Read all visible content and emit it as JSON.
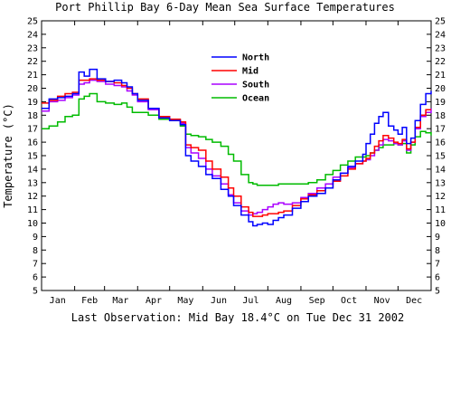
{
  "chart_data": {
    "type": "line",
    "title": "Port Phillip Bay 6-Day Mean Sea Surface Temperatures",
    "ylabel": "Temperature (°C)",
    "footer": "Last Observation: Mid Bay 18.4°C on Tue Dec 31 2002",
    "ylim": [
      5,
      25
    ],
    "xlim": [
      0,
      365
    ],
    "y_ticks": [
      5,
      6,
      7,
      8,
      9,
      10,
      11,
      12,
      13,
      14,
      15,
      16,
      17,
      18,
      19,
      20,
      21,
      22,
      23,
      24,
      25
    ],
    "x_tick_days": [
      0,
      31,
      59,
      90,
      120,
      151,
      181,
      212,
      243,
      273,
      304,
      334,
      365
    ],
    "x_categories": [
      "Jan",
      "Feb",
      "Mar",
      "Apr",
      "May",
      "Jun",
      "Jul",
      "Aug",
      "Sep",
      "Oct",
      "Nov",
      "Dec"
    ],
    "x_category_days": [
      15,
      45,
      74,
      105,
      135,
      166,
      196,
      227,
      258,
      288,
      319,
      349
    ],
    "legend_position": "top-center",
    "grid": false,
    "series": [
      {
        "name": "North",
        "color": "#0000ff",
        "x": [
          0,
          7,
          15,
          22,
          29,
          35,
          40,
          45,
          52,
          60,
          68,
          75,
          80,
          85,
          90,
          100,
          110,
          120,
          130,
          135,
          140,
          147,
          154,
          160,
          168,
          175,
          180,
          187,
          194,
          198,
          202,
          207,
          212,
          217,
          222,
          227,
          235,
          243,
          250,
          258,
          266,
          273,
          280,
          287,
          294,
          301,
          304,
          308,
          312,
          316,
          320,
          325,
          330,
          334,
          338,
          342,
          346,
          350,
          355,
          360,
          365
        ],
        "y": [
          18.5,
          19.2,
          19.3,
          19.4,
          19.6,
          21.2,
          20.9,
          21.4,
          20.7,
          20.5,
          20.6,
          20.4,
          20.1,
          19.6,
          19.1,
          18.5,
          17.8,
          17.6,
          17.3,
          15.0,
          14.6,
          14.2,
          13.6,
          13.3,
          12.5,
          12.0,
          11.3,
          10.6,
          10.1,
          9.8,
          9.9,
          10.0,
          9.9,
          10.2,
          10.4,
          10.6,
          11.1,
          11.6,
          12.0,
          12.2,
          12.6,
          13.2,
          13.7,
          14.2,
          14.6,
          15.1,
          15.9,
          16.6,
          17.4,
          17.9,
          18.2,
          17.2,
          16.9,
          16.6,
          17.1,
          15.9,
          16.3,
          17.6,
          18.8,
          19.6,
          19.8
        ]
      },
      {
        "name": "Mid",
        "color": "#ff0000",
        "x": [
          0,
          7,
          15,
          22,
          29,
          35,
          40,
          45,
          52,
          60,
          68,
          75,
          80,
          85,
          90,
          100,
          110,
          120,
          130,
          135,
          140,
          147,
          154,
          160,
          168,
          175,
          180,
          187,
          194,
          198,
          202,
          207,
          212,
          217,
          222,
          227,
          235,
          243,
          250,
          258,
          266,
          273,
          280,
          287,
          294,
          301,
          304,
          308,
          312,
          316,
          320,
          325,
          330,
          334,
          338,
          342,
          346,
          350,
          355,
          360,
          365
        ],
        "y": [
          18.9,
          19.1,
          19.4,
          19.6,
          19.7,
          20.6,
          20.6,
          20.7,
          20.6,
          20.5,
          20.4,
          20.2,
          20.0,
          19.6,
          19.2,
          18.5,
          17.9,
          17.7,
          17.5,
          15.8,
          15.6,
          15.4,
          14.6,
          14.0,
          13.4,
          12.6,
          12.0,
          11.2,
          10.8,
          10.5,
          10.5,
          10.6,
          10.7,
          10.7,
          10.8,
          10.9,
          11.3,
          11.8,
          12.1,
          12.4,
          12.6,
          13.1,
          13.5,
          14.0,
          14.4,
          14.6,
          14.8,
          15.2,
          15.7,
          16.1,
          16.5,
          16.3,
          16.0,
          15.9,
          16.2,
          15.5,
          16.0,
          17.1,
          18.0,
          18.4,
          18.4
        ]
      },
      {
        "name": "South",
        "color": "#aa00ff",
        "x": [
          0,
          7,
          15,
          22,
          29,
          35,
          40,
          45,
          52,
          60,
          68,
          75,
          80,
          85,
          90,
          100,
          110,
          120,
          130,
          135,
          140,
          147,
          154,
          160,
          168,
          175,
          180,
          187,
          194,
          198,
          202,
          207,
          212,
          217,
          222,
          227,
          235,
          243,
          250,
          258,
          266,
          273,
          280,
          287,
          294,
          301,
          304,
          308,
          312,
          316,
          320,
          325,
          330,
          334,
          338,
          342,
          346,
          350,
          355,
          360,
          365
        ],
        "y": [
          18.3,
          19.0,
          19.1,
          19.3,
          19.5,
          20.3,
          20.4,
          20.6,
          20.5,
          20.3,
          20.2,
          20.1,
          19.8,
          19.5,
          19.0,
          18.4,
          17.8,
          17.6,
          17.4,
          15.6,
          15.2,
          14.8,
          14.0,
          13.5,
          12.9,
          12.1,
          11.5,
          10.9,
          10.6,
          10.7,
          10.8,
          11.0,
          11.2,
          11.4,
          11.5,
          11.4,
          11.5,
          11.9,
          12.2,
          12.6,
          12.9,
          13.4,
          13.7,
          14.1,
          14.4,
          14.6,
          14.7,
          15.0,
          15.4,
          15.8,
          16.2,
          16.1,
          15.9,
          15.8,
          16.1,
          15.4,
          16.0,
          17.0,
          17.9,
          18.2,
          18.5
        ]
      },
      {
        "name": "Ocean",
        "color": "#00bb00",
        "x": [
          0,
          7,
          15,
          22,
          29,
          35,
          40,
          45,
          52,
          60,
          68,
          75,
          80,
          85,
          90,
          100,
          110,
          120,
          130,
          135,
          140,
          147,
          154,
          160,
          168,
          175,
          180,
          187,
          194,
          198,
          202,
          207,
          212,
          217,
          222,
          227,
          235,
          243,
          250,
          258,
          266,
          273,
          280,
          287,
          294,
          301,
          304,
          308,
          312,
          316,
          320,
          325,
          330,
          334,
          338,
          342,
          346,
          350,
          355,
          360,
          365
        ],
        "y": [
          17.0,
          17.2,
          17.5,
          17.9,
          18.0,
          19.2,
          19.4,
          19.6,
          19.0,
          18.9,
          18.8,
          18.9,
          18.6,
          18.2,
          18.2,
          18.0,
          17.7,
          17.6,
          17.2,
          16.6,
          16.5,
          16.4,
          16.2,
          16.0,
          15.7,
          15.1,
          14.6,
          13.6,
          13.0,
          12.9,
          12.8,
          12.8,
          12.8,
          12.8,
          12.9,
          12.9,
          12.9,
          12.9,
          13.0,
          13.2,
          13.6,
          13.9,
          14.3,
          14.6,
          14.9,
          14.9,
          15.0,
          15.2,
          15.4,
          15.6,
          15.8,
          15.8,
          15.9,
          15.8,
          15.9,
          15.2,
          15.8,
          16.4,
          16.8,
          16.7,
          16.5
        ]
      }
    ]
  }
}
